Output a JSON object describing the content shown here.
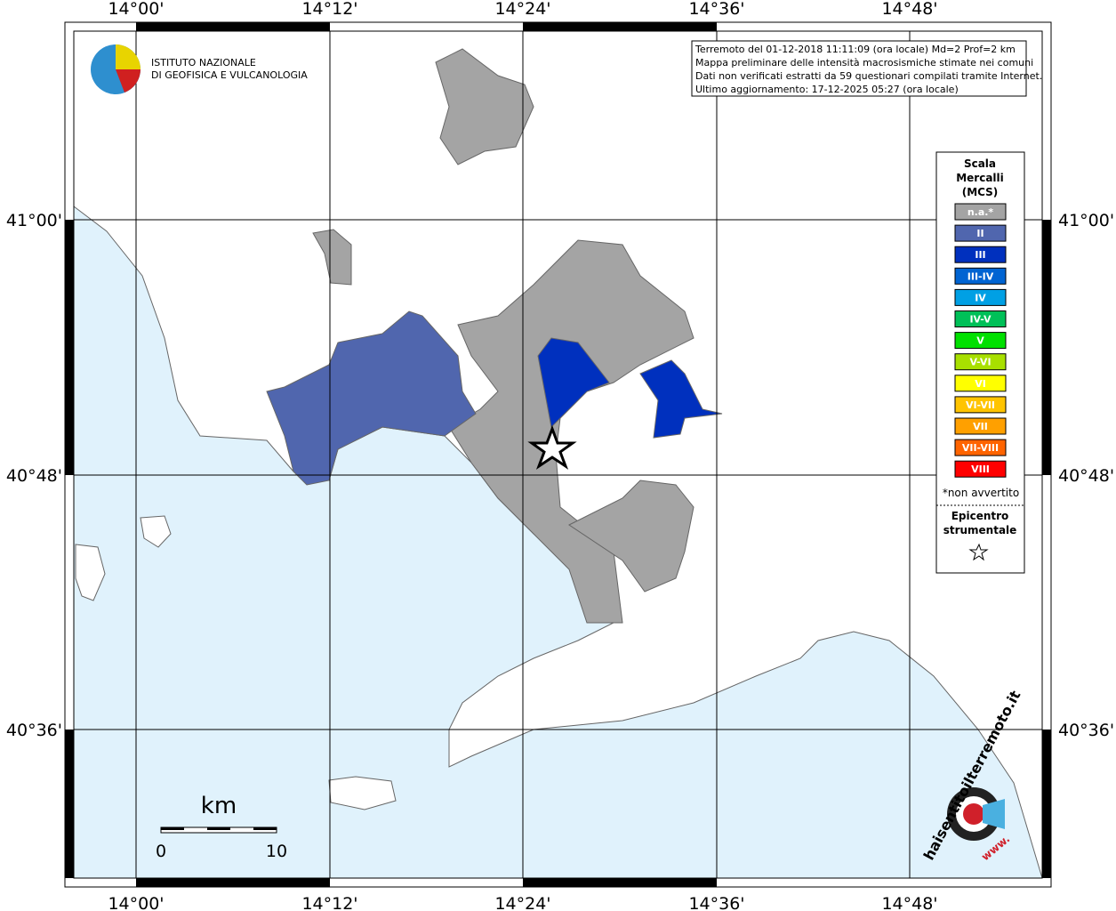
{
  "map": {
    "lon_labels": [
      "14°00'",
      "14°12'",
      "14°24'",
      "14°36'",
      "14°48'"
    ],
    "lat_labels": [
      "41°00'",
      "40°48'",
      "40°36'"
    ],
    "logo": {
      "line1": "ISTITUTO NAZIONALE",
      "line2": "DI GEOFISICA E VULCANOLOGIA"
    },
    "info": [
      "Terremoto del 01-12-2018 11:11:09 (ora locale) Md=2 Prof=2 km",
      "Mappa preliminare delle intensità macrosismiche stimate nei comuni",
      "Dati non verificati estratti da 59 questionari compilati tramite Internet.",
      "Ultimo aggiornamento: 17-12-2025 05:27 (ora locale)"
    ],
    "legend": {
      "title": [
        "Scala",
        "Mercalli",
        "(MCS)"
      ],
      "items": [
        {
          "label": "n.a.*",
          "color": "#a4a4a4"
        },
        {
          "label": "II",
          "color": "#5066ae"
        },
        {
          "label": "III",
          "color": "#0030be"
        },
        {
          "label": "III-IV",
          "color": "#0064d2"
        },
        {
          "label": "IV",
          "color": "#00a0e4"
        },
        {
          "label": "IV-V",
          "color": "#00c058"
        },
        {
          "label": "V",
          "color": "#00e000"
        },
        {
          "label": "V-VI",
          "color": "#a8e000"
        },
        {
          "label": "VI",
          "color": "#ffff00"
        },
        {
          "label": "VI-VII",
          "color": "#ffc400"
        },
        {
          "label": "VII",
          "color": "#ffa000"
        },
        {
          "label": "VII-VIII",
          "color": "#ff6400"
        },
        {
          "label": "VIII",
          "color": "#ff0000"
        }
      ],
      "note": "*non avvertito",
      "epicenter": [
        "Epicentro",
        "strumentale"
      ]
    },
    "scale": {
      "unit": "km",
      "start": "0",
      "end": "10"
    },
    "site": {
      "name": "haisentitoilterremoto.it",
      "www": "www."
    }
  }
}
